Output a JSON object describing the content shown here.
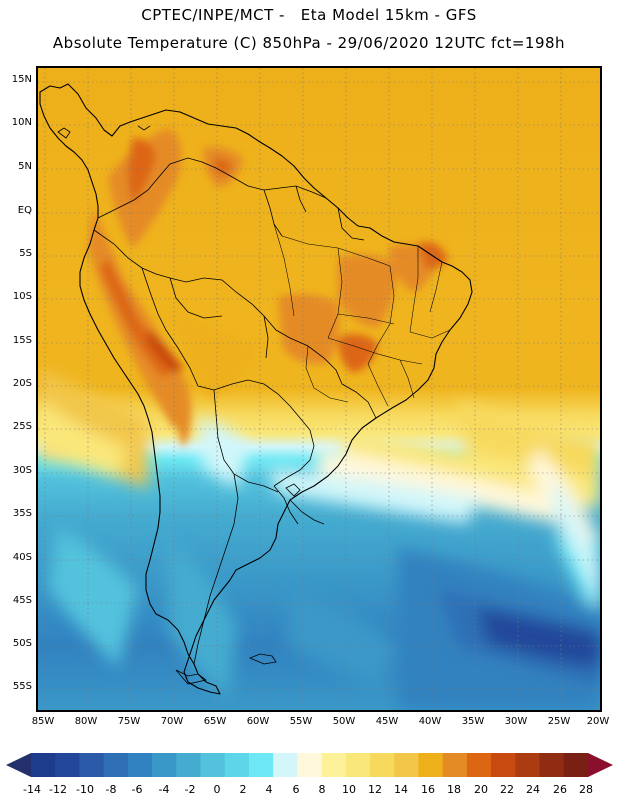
{
  "header": {
    "title_line1": "CPTEC/INPE/MCT -   Eta Model 15km - GFS",
    "title_line2": "Absolute Temperature (C) 850hPa - 29/06/2020 12UTC fct=198h"
  },
  "map": {
    "lat_labels": [
      "15N",
      "10N",
      "5N",
      "EQ",
      "5S",
      "10S",
      "15S",
      "20S",
      "25S",
      "30S",
      "35S",
      "40S",
      "45S",
      "50S",
      "55S"
    ],
    "lon_labels": [
      "85W",
      "80W",
      "75W",
      "70W",
      "65W",
      "60W",
      "55W",
      "50W",
      "45W",
      "40W",
      "35W",
      "30W",
      "25W",
      "20W"
    ]
  },
  "colorbar": {
    "labels": [
      "-14",
      "-12",
      "-10",
      "-8",
      "-6",
      "-4",
      "-2",
      "0",
      "2",
      "4",
      "6",
      "8",
      "10",
      "12",
      "14",
      "16",
      "18",
      "20",
      "22",
      "24",
      "26",
      "28"
    ],
    "colors": [
      "#1e3c8c",
      "#22479a",
      "#2a5aa8",
      "#2e6fb6",
      "#3182c0",
      "#3a98c8",
      "#45abd0",
      "#52c2dd",
      "#5ed5e8",
      "#6ee8f4",
      "#d2f6fa",
      "#fff8dc",
      "#fdf29a",
      "#fae77a",
      "#f7d95d",
      "#f2c648",
      "#eeb01a",
      "#e58b26",
      "#dd6613",
      "#c84a10",
      "#ab3b10",
      "#8f2c12",
      "#7a1f14"
    ],
    "low_arrow_color": "#23306b",
    "high_arrow_color": "#8a0f2c"
  }
}
